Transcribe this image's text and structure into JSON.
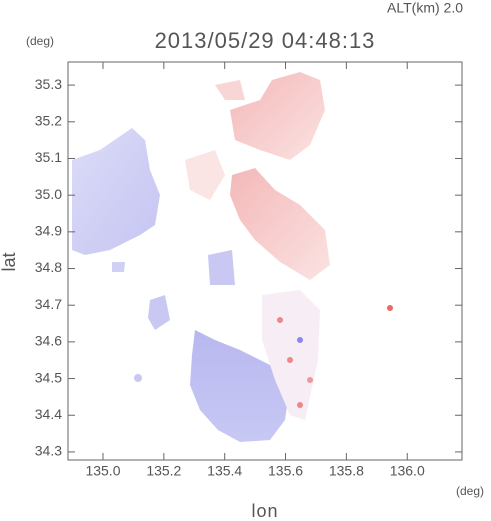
{
  "chart_data": {
    "type": "map",
    "title": "2013/05/29 04:48:13",
    "annotation": "ALT(km) 2.0",
    "y_unit": "(deg)",
    "x_unit": "(deg)",
    "xlabel": "lon",
    "ylabel": "lat",
    "xlim": [
      134.885,
      136.18
    ],
    "ylim": [
      34.278,
      35.363
    ],
    "xticks": [
      {
        "value": 135,
        "label": "135.0"
      },
      135.2,
      135.4,
      135.6,
      135.8,
      {
        "value": 136,
        "label": "136.0"
      }
    ],
    "yticks": [
      35.3,
      35.2,
      35.1,
      {
        "value": 35,
        "label": "35.0"
      },
      34.9,
      34.8,
      34.7,
      34.6,
      34.5,
      34.4,
      34.3
    ]
  }
}
